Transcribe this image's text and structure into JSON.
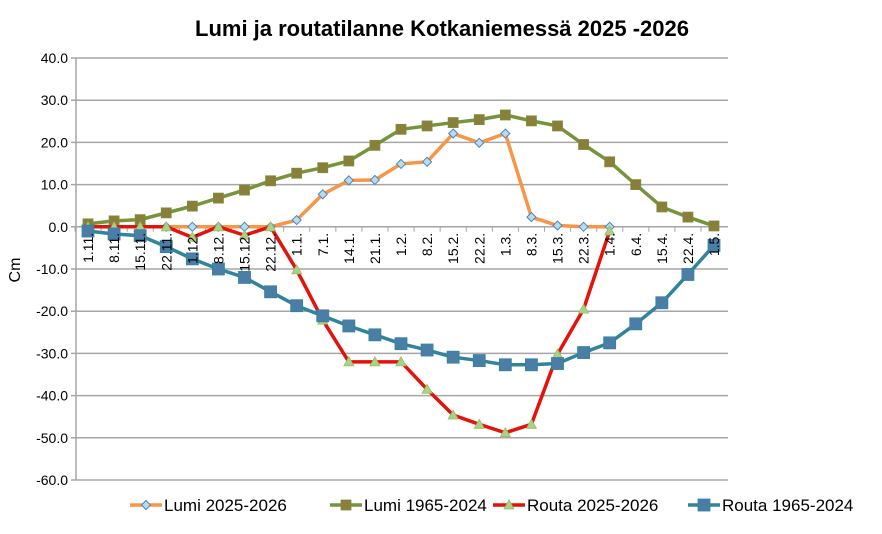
{
  "chart_data": {
    "type": "line",
    "title": "Lumi ja routatilanne Kotkaniemessä 2025  -2026",
    "xlabel": "",
    "ylabel": "Cm",
    "ylim": [
      -60,
      40
    ],
    "yticks": [
      "40.0",
      "30.0",
      "20.0",
      "10.0",
      "0.0",
      "-10.0",
      "-20.0",
      "-30.0",
      "-40.0",
      "-50.0",
      "-60.0"
    ],
    "grid": true,
    "legend_position": "bottom",
    "categories": [
      "1.11.",
      "8.11.",
      "15.11.",
      "22.11.",
      "1.12.",
      "8.12.",
      "15.12.",
      "22.12.",
      "1.1.",
      "7.1.",
      "14.1.",
      "21.1.",
      "1.2.",
      "8.2.",
      "15.2.",
      "22.2.",
      "1.3.",
      "8.3.",
      "15.3.",
      "22.3.",
      "1.4.",
      "6.4.",
      "15.4.",
      "22.4.",
      "1.5."
    ],
    "series": [
      {
        "name": "Lumi 2025-2026",
        "color": "#f79646",
        "marker": "diamond",
        "marker_color": "#b7dee8",
        "values": [
          0,
          0,
          0,
          0,
          0,
          0,
          0,
          0,
          1.6,
          7.7,
          11.0,
          11.1,
          14.9,
          15.4,
          22.1,
          19.9,
          22.1,
          2.3,
          0.3,
          0,
          0,
          null,
          null,
          null,
          null
        ]
      },
      {
        "name": "Lumi 1965-2024",
        "color": "#77933c",
        "marker": "square",
        "marker_color": "#8b7d3a",
        "values": [
          0.7,
          1.4,
          1.7,
          3.3,
          4.9,
          6.8,
          8.7,
          10.9,
          12.7,
          14.0,
          15.6,
          19.3,
          23.1,
          23.9,
          24.7,
          25.4,
          26.5,
          25.1,
          23.9,
          19.5,
          15.4,
          10.0,
          4.7,
          2.3,
          0.2
        ]
      },
      {
        "name": "Routa 2025-2026",
        "color": "#e3120b",
        "marker": "triangle",
        "marker_color": "#a9d18e",
        "values": [
          0,
          0,
          0,
          0,
          -2.5,
          0,
          -2,
          0,
          -10.2,
          -22.1,
          -32,
          -32,
          -32,
          -38.5,
          -44.6,
          -46.8,
          -48.8,
          -46.8,
          -30.2,
          -19.5,
          -1,
          null,
          null,
          null,
          null
        ]
      },
      {
        "name": "Routa 1965-2024",
        "color": "#31849b",
        "marker": "square",
        "marker_color": "#4a7ea6",
        "values": [
          -1,
          -1.7,
          -2.1,
          -4.7,
          -7.6,
          -10,
          -12,
          -15.4,
          -18.7,
          -21.1,
          -23.5,
          -25.6,
          -27.7,
          -29.2,
          -30.9,
          -31.7,
          -32.7,
          -32.7,
          -32.4,
          -29.8,
          -27.5,
          -23,
          -18,
          -11.3,
          -4.4
        ]
      }
    ]
  }
}
